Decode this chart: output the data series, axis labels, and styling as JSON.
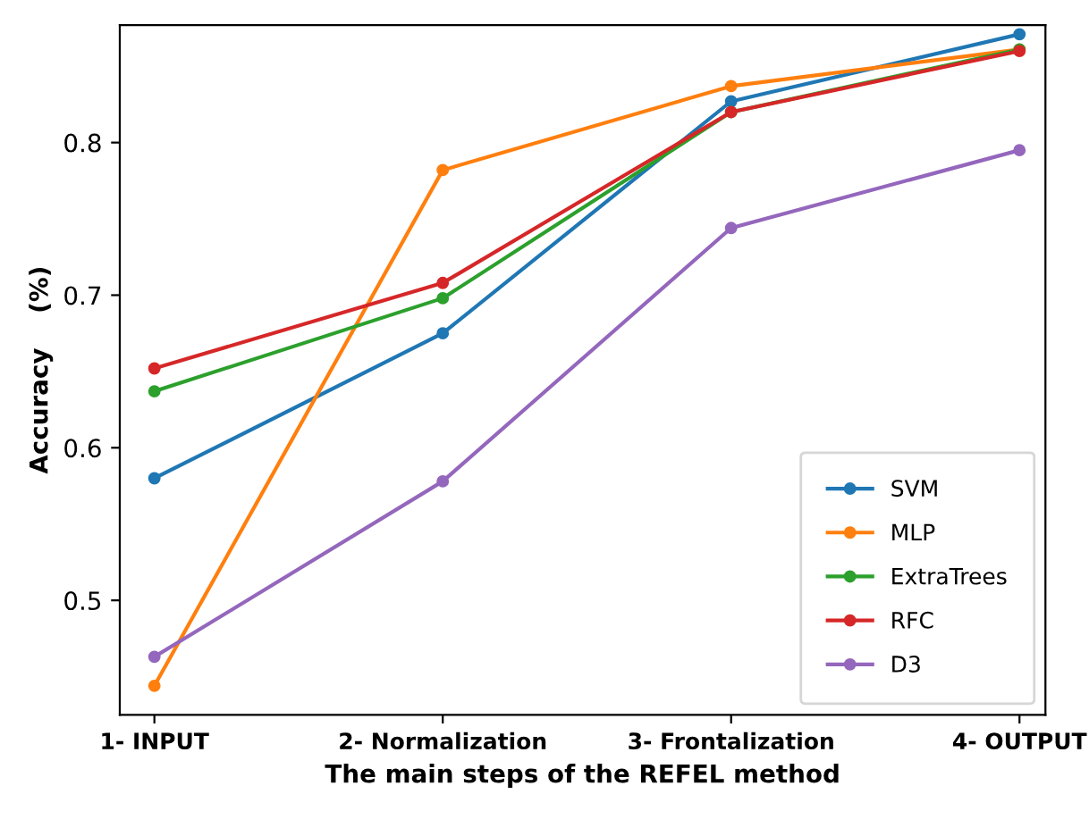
{
  "chart_data": {
    "type": "line",
    "xlabel": "The main steps of the REFEL method",
    "ylabel": "Accuracy    (%)",
    "categories": [
      "1- INPUT",
      "2- Normalization",
      "3- Frontalization",
      "4- OUTPUT"
    ],
    "series": [
      {
        "name": "SVM",
        "color": "#1f77b4",
        "values": [
          0.58,
          0.675,
          0.827,
          0.871
        ]
      },
      {
        "name": "MLP",
        "color": "#ff7f0e",
        "values": [
          0.444,
          0.782,
          0.837,
          0.861
        ]
      },
      {
        "name": "ExtraTrees",
        "color": "#2ca02c",
        "values": [
          0.637,
          0.698,
          0.82,
          0.861
        ]
      },
      {
        "name": "RFC",
        "color": "#d62728",
        "values": [
          0.652,
          0.708,
          0.82,
          0.86
        ]
      },
      {
        "name": "D3",
        "color": "#9467bd",
        "values": [
          0.463,
          0.578,
          0.744,
          0.795
        ]
      }
    ],
    "ylim": [
      0.425,
      0.877
    ],
    "yticks": [
      0.5,
      0.6,
      0.7,
      0.8
    ],
    "grid": false,
    "legend": "bottom right",
    "marker": "circle",
    "line_style": "solid"
  }
}
